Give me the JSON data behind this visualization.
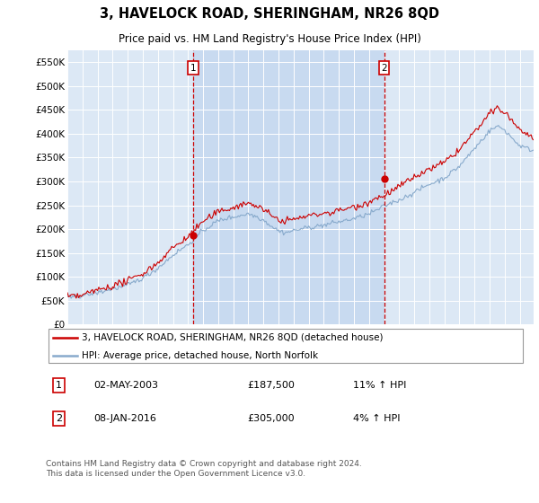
{
  "title": "3, HAVELOCK ROAD, SHERINGHAM, NR26 8QD",
  "subtitle": "Price paid vs. HM Land Registry's House Price Index (HPI)",
  "plot_bg_color": "#dce8f5",
  "highlight_bg_color": "#c8daf0",
  "ylim": [
    0,
    575000
  ],
  "yticks": [
    0,
    50000,
    100000,
    150000,
    200000,
    250000,
    300000,
    350000,
    400000,
    450000,
    500000,
    550000
  ],
  "ytick_labels": [
    "£0",
    "£50K",
    "£100K",
    "£150K",
    "£200K",
    "£250K",
    "£300K",
    "£350K",
    "£400K",
    "£450K",
    "£500K",
    "£550K"
  ],
  "sale1_month_idx": 100,
  "sale1_price": 187500,
  "sale1_label": "1",
  "sale1_date_str": "02-MAY-2003",
  "sale1_pct": "11% ↑ HPI",
  "sale2_month_idx": 252,
  "sale2_price": 305000,
  "sale2_label": "2",
  "sale2_date_str": "08-JAN-2016",
  "sale2_pct": "4% ↑ HPI",
  "red_line_label": "3, HAVELOCK ROAD, SHERINGHAM, NR26 8QD (detached house)",
  "blue_line_label": "HPI: Average price, detached house, North Norfolk",
  "footer": "Contains HM Land Registry data © Crown copyright and database right 2024.\nThis data is licensed under the Open Government Licence v3.0.",
  "start_year": 1995,
  "end_year": 2025,
  "red_color": "#cc0000",
  "blue_color": "#88aacc",
  "grid_color": "#ffffff",
  "vline_color": "#cc0000",
  "seed": 42
}
